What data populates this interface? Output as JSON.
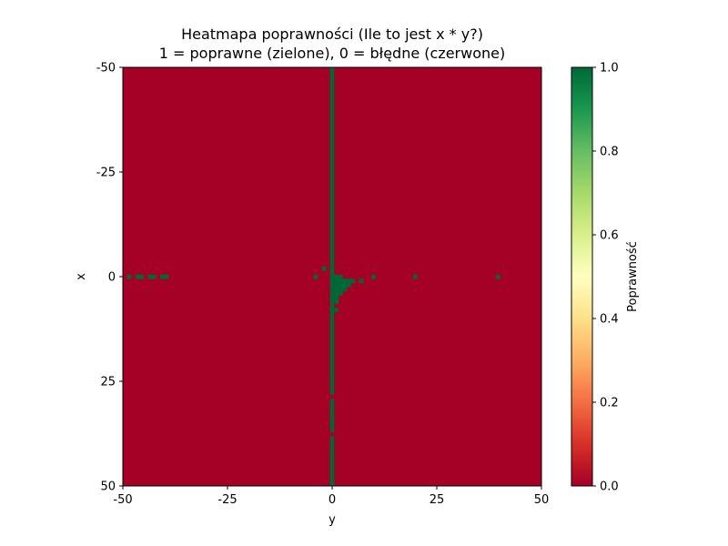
{
  "chart_data": {
    "type": "heatmap",
    "title": "Heatmapa poprawności (Ile to jest x * y?)",
    "subtitle": "1 = poprawne (zielone), 0 = błędne (czerwone)",
    "xlabel": "y",
    "ylabel": "x",
    "xlim": [
      -50,
      50
    ],
    "ylim": [
      50,
      -50
    ],
    "x_ticks": [
      -50,
      -25,
      0,
      25,
      50
    ],
    "x_tick_labels": [
      "-50",
      "-25",
      "0",
      "25",
      "50"
    ],
    "y_ticks": [
      -50,
      -25,
      0,
      25,
      50
    ],
    "y_tick_labels": [
      "-50",
      "-25",
      "0",
      "25",
      "50"
    ],
    "y_inverted": true,
    "background_value": 0,
    "colorbar": {
      "label": "Poprawność",
      "min": 0.0,
      "max": 1.0,
      "ticks": [
        0.0,
        0.2,
        0.4,
        0.6,
        0.8,
        1.0
      ],
      "tick_labels": [
        "0.0",
        "0.2",
        "0.4",
        "0.6",
        "0.8",
        "1.0"
      ],
      "colormap": "RdYlGn",
      "colors": [
        "#a50026",
        "#d73027",
        "#f46d43",
        "#fdae61",
        "#fee08b",
        "#ffffbf",
        "#d9ef8b",
        "#a6d96a",
        "#66bd63",
        "#1a9850",
        "#006837"
      ]
    },
    "correct_column": {
      "y": 0,
      "x_segments": [
        [
          -50,
          28
        ],
        [
          30,
          37
        ],
        [
          39,
          50
        ]
      ],
      "value": 1
    },
    "correct_cells": [
      {
        "x": 0,
        "y": -49,
        "value": 1
      },
      {
        "x": 0,
        "y": -47,
        "value": 1
      },
      {
        "x": 0,
        "y": -46,
        "value": 1
      },
      {
        "x": 0,
        "y": -44,
        "value": 1
      },
      {
        "x": 0,
        "y": -43,
        "value": 1
      },
      {
        "x": 0,
        "y": -41,
        "value": 1
      },
      {
        "x": 0,
        "y": -40,
        "value": 1
      },
      {
        "x": -2,
        "y": -2,
        "value": 1
      },
      {
        "x": 0,
        "y": -4,
        "value": 1
      },
      {
        "x": 0,
        "y": 1,
        "value": 1
      },
      {
        "x": 0,
        "y": 2,
        "value": 1
      },
      {
        "x": 1,
        "y": 1,
        "value": 1
      },
      {
        "x": 1,
        "y": 2,
        "value": 1
      },
      {
        "x": 1,
        "y": 3,
        "value": 1
      },
      {
        "x": 1,
        "y": 4,
        "value": 1
      },
      {
        "x": 1,
        "y": 5,
        "value": 1
      },
      {
        "x": 1,
        "y": 7,
        "value": 1
      },
      {
        "x": 2,
        "y": 1,
        "value": 1
      },
      {
        "x": 2,
        "y": 2,
        "value": 1
      },
      {
        "x": 2,
        "y": 3,
        "value": 1
      },
      {
        "x": 2,
        "y": 4,
        "value": 1
      },
      {
        "x": 3,
        "y": 1,
        "value": 1
      },
      {
        "x": 3,
        "y": 2,
        "value": 1
      },
      {
        "x": 3,
        "y": 3,
        "value": 1
      },
      {
        "x": 4,
        "y": 1,
        "value": 1
      },
      {
        "x": 4,
        "y": 2,
        "value": 1
      },
      {
        "x": 5,
        "y": 1,
        "value": 1
      },
      {
        "x": 6,
        "y": 1,
        "value": 1
      },
      {
        "x": 8,
        "y": 1,
        "value": 1
      },
      {
        "x": 0,
        "y": 10,
        "value": 1
      },
      {
        "x": 0,
        "y": 20,
        "value": 1
      },
      {
        "x": 0,
        "y": 40,
        "value": 1
      }
    ]
  }
}
